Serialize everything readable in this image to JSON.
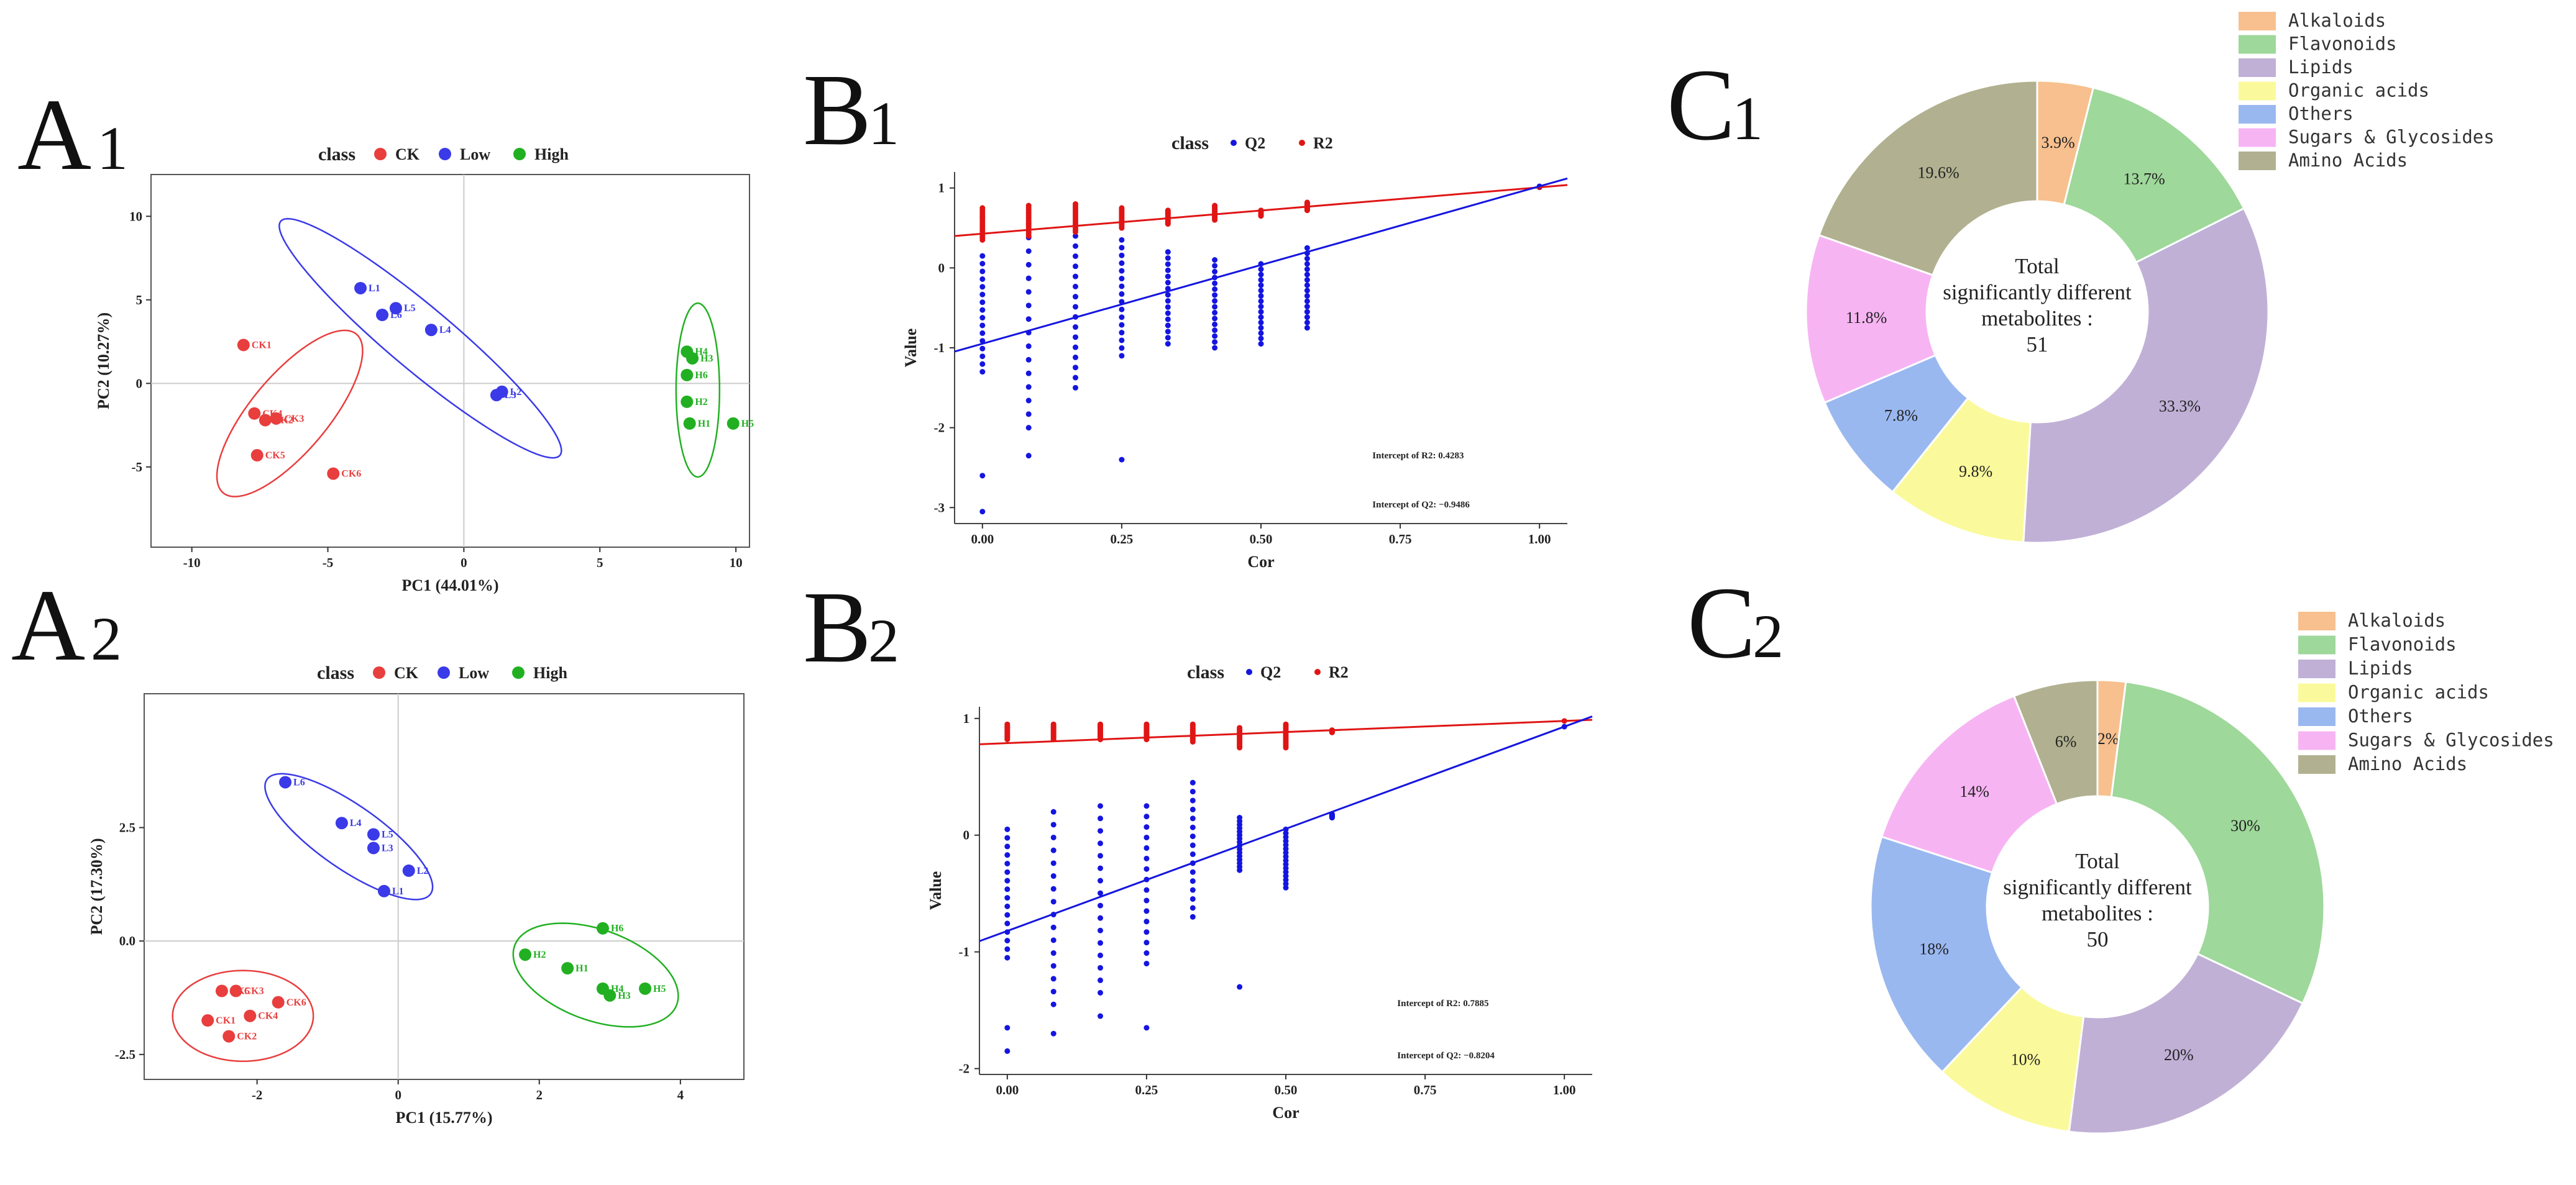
{
  "chart_data": [
    {
      "id": "A1",
      "type": "scatter",
      "panel_label": "A",
      "panel_index": "1",
      "xlabel": "PC1 (44.01%)",
      "ylabel": "PC2 (10.27%)",
      "xlim": [
        -11.5,
        10.5
      ],
      "ylim": [
        -9.8,
        12.5
      ],
      "xticks": [
        -10,
        -5,
        0,
        5,
        10
      ],
      "yticks": [
        -5,
        0,
        5,
        10
      ],
      "legend_title": "class",
      "series": [
        {
          "name": "CK",
          "color": "#e83e3e",
          "points": [
            {
              "label": "CK1",
              "x": -8.1,
              "y": 2.3
            },
            {
              "label": "CK4",
              "x": -7.7,
              "y": -1.8
            },
            {
              "label": "CK2",
              "x": -7.3,
              "y": -2.2
            },
            {
              "label": "CK3",
              "x": -6.9,
              "y": -2.1
            },
            {
              "label": "CK5",
              "x": -7.6,
              "y": -4.3
            },
            {
              "label": "CK6",
              "x": -4.8,
              "y": -5.4
            }
          ],
          "ellipse": {
            "cx": -6.4,
            "cy": -1.8,
            "rx": 2.3,
            "ry": 6.2,
            "angle": -40
          }
        },
        {
          "name": "Low",
          "color": "#3a3ae8",
          "points": [
            {
              "label": "L1",
              "x": -3.8,
              "y": 5.7
            },
            {
              "label": "L6",
              "x": -3.0,
              "y": 4.1
            },
            {
              "label": "L5",
              "x": -2.5,
              "y": 4.5
            },
            {
              "label": "L4",
              "x": -1.2,
              "y": 3.2
            },
            {
              "label": "L3",
              "x": 1.2,
              "y": -0.7
            },
            {
              "label": "L2",
              "x": 1.4,
              "y": -0.5
            }
          ],
          "ellipse": {
            "cx": -1.6,
            "cy": 2.7,
            "rx": 10.9,
            "ry": 1.9,
            "angle": -40
          }
        },
        {
          "name": "High",
          "color": "#22b022",
          "points": [
            {
              "label": "H4",
              "x": 8.2,
              "y": 1.9
            },
            {
              "label": "H3",
              "x": 8.4,
              "y": 1.5
            },
            {
              "label": "H6",
              "x": 8.2,
              "y": 0.5
            },
            {
              "label": "H2",
              "x": 8.2,
              "y": -1.1
            },
            {
              "label": "H1",
              "x": 8.3,
              "y": -2.4
            },
            {
              "label": "H5",
              "x": 9.9,
              "y": -2.4
            }
          ],
          "ellipse": {
            "cx": 8.6,
            "cy": -0.4,
            "rx": 1.3,
            "ry": 5.2,
            "angle": 0
          }
        }
      ]
    },
    {
      "id": "A2",
      "type": "scatter",
      "panel_label": "A",
      "panel_index": "2",
      "xlabel": "PC1 (15.77%)",
      "ylabel": "PC2 (17.30%)",
      "xlim": [
        -3.6,
        4.9
      ],
      "ylim": [
        -3.05,
        5.45
      ],
      "xticks": [
        -2,
        0,
        2,
        4
      ],
      "yticks": [
        -2.5,
        0.0,
        2.5
      ],
      "ytick_labels": [
        "-2.5",
        "0.0",
        "2.5"
      ],
      "legend_title": "class",
      "series": [
        {
          "name": "CK",
          "color": "#e83e3e",
          "points": [
            {
              "label": "CK5",
              "x": -2.5,
              "y": -1.1
            },
            {
              "label": "CK3",
              "x": -2.3,
              "y": -1.1
            },
            {
              "label": "CK6",
              "x": -1.7,
              "y": -1.35
            },
            {
              "label": "CK1",
              "x": -2.7,
              "y": -1.75
            },
            {
              "label": "CK4",
              "x": -2.1,
              "y": -1.65
            },
            {
              "label": "CK2",
              "x": -2.4,
              "y": -2.1
            }
          ],
          "ellipse": {
            "cx": -2.2,
            "cy": -1.65,
            "rx": 1.55,
            "ry": 1.0,
            "angle": 0
          }
        },
        {
          "name": "Low",
          "color": "#3a3ae8",
          "points": [
            {
              "label": "L6",
              "x": -1.6,
              "y": 3.5
            },
            {
              "label": "L4",
              "x": -0.8,
              "y": 2.6
            },
            {
              "label": "L5",
              "x": -0.35,
              "y": 2.35
            },
            {
              "label": "L3",
              "x": -0.35,
              "y": 2.05
            },
            {
              "label": "L2",
              "x": 0.15,
              "y": 1.55
            },
            {
              "label": "L1",
              "x": -0.2,
              "y": 1.1
            }
          ],
          "ellipse": {
            "cx": -0.7,
            "cy": 2.3,
            "rx": 2.2,
            "ry": 0.7,
            "angle": -35
          }
        },
        {
          "name": "High",
          "color": "#22b022",
          "points": [
            {
              "label": "H6",
              "x": 2.9,
              "y": 0.28
            },
            {
              "label": "H2",
              "x": 1.8,
              "y": -0.3
            },
            {
              "label": "H1",
              "x": 2.4,
              "y": -0.6
            },
            {
              "label": "H4",
              "x": 2.9,
              "y": -1.05
            },
            {
              "label": "H5",
              "x": 3.5,
              "y": -1.05
            },
            {
              "label": "H3",
              "x": 3.0,
              "y": -1.2
            }
          ],
          "ellipse": {
            "cx": 2.8,
            "cy": -0.75,
            "rx": 1.9,
            "ry": 1.0,
            "angle": -20
          }
        }
      ]
    },
    {
      "id": "B1",
      "type": "scatter",
      "panel_label": "B",
      "panel_index": "1",
      "xlabel": "Cor",
      "ylabel": "Value",
      "xlim": [
        -0.05,
        1.05
      ],
      "ylim": [
        -3.2,
        1.2
      ],
      "xticks": [
        0.0,
        0.25,
        0.5,
        0.75,
        1.0
      ],
      "xtick_labels": [
        "0.00",
        "0.25",
        "0.50",
        "0.75",
        "1.00"
      ],
      "yticks": [
        -3,
        -2,
        -1,
        0,
        1
      ],
      "legend_title": "class",
      "legend": [
        {
          "name": "Q2",
          "color": "#1515e0"
        },
        {
          "name": "R2",
          "color": "#e01515"
        }
      ],
      "r2_points": {
        "color": "#e01515",
        "columns": [
          {
            "x": 0.0,
            "min": 0.35,
            "max": 0.75
          },
          {
            "x": 0.083,
            "min": 0.4,
            "max": 0.78
          },
          {
            "x": 0.167,
            "min": 0.45,
            "max": 0.8
          },
          {
            "x": 0.25,
            "min": 0.5,
            "max": 0.75
          },
          {
            "x": 0.333,
            "min": 0.55,
            "max": 0.72
          },
          {
            "x": 0.417,
            "min": 0.6,
            "max": 0.78
          },
          {
            "x": 0.5,
            "min": 0.65,
            "max": 0.72
          },
          {
            "x": 0.583,
            "min": 0.72,
            "max": 0.82
          }
        ]
      },
      "q2_points": {
        "color": "#1515e0",
        "columns": [
          {
            "x": 0.0,
            "min": -1.3,
            "max": 0.15,
            "outliers": [
              -2.6,
              -3.05
            ]
          },
          {
            "x": 0.083,
            "min": -2.0,
            "max": 0.55,
            "outliers": [
              -2.35
            ]
          },
          {
            "x": 0.167,
            "min": -1.5,
            "max": 0.4,
            "outliers": []
          },
          {
            "x": 0.25,
            "min": -1.1,
            "max": 0.35,
            "outliers": [
              -2.4
            ]
          },
          {
            "x": 0.333,
            "min": -0.95,
            "max": 0.2,
            "outliers": []
          },
          {
            "x": 0.417,
            "min": -1.0,
            "max": 0.1,
            "outliers": []
          },
          {
            "x": 0.5,
            "min": -0.95,
            "max": 0.05,
            "outliers": []
          },
          {
            "x": 0.583,
            "min": -0.75,
            "max": 0.25,
            "outliers": []
          }
        ]
      },
      "r2_line": {
        "intercept": 0.4283,
        "slope": 0.58
      },
      "q2_line": {
        "intercept": -0.9486,
        "slope": 1.97
      },
      "annotations": [
        "Intercept of R2: 0.4283",
        "Intercept of Q2: −0.9486"
      ]
    },
    {
      "id": "B2",
      "type": "scatter",
      "panel_label": "B",
      "panel_index": "2",
      "xlabel": "Cor",
      "ylabel": "Value",
      "xlim": [
        -0.05,
        1.05
      ],
      "ylim": [
        -2.05,
        1.1
      ],
      "xticks": [
        0.0,
        0.25,
        0.5,
        0.75,
        1.0
      ],
      "xtick_labels": [
        "0.00",
        "0.25",
        "0.50",
        "0.75",
        "1.00"
      ],
      "yticks": [
        -2,
        -1,
        0,
        1
      ],
      "legend_title": "class",
      "legend": [
        {
          "name": "Q2",
          "color": "#1515e0"
        },
        {
          "name": "R2",
          "color": "#e01515"
        }
      ],
      "r2_points": {
        "color": "#e01515",
        "columns": [
          {
            "x": 0.0,
            "min": 0.82,
            "max": 0.95
          },
          {
            "x": 0.083,
            "min": 0.82,
            "max": 0.95
          },
          {
            "x": 0.167,
            "min": 0.82,
            "max": 0.95
          },
          {
            "x": 0.25,
            "min": 0.82,
            "max": 0.95
          },
          {
            "x": 0.333,
            "min": 0.8,
            "max": 0.95
          },
          {
            "x": 0.417,
            "min": 0.75,
            "max": 0.92
          },
          {
            "x": 0.5,
            "min": 0.75,
            "max": 0.95
          },
          {
            "x": 0.583,
            "min": 0.88,
            "max": 0.9
          }
        ]
      },
      "q2_points": {
        "color": "#1515e0",
        "columns": [
          {
            "x": 0.0,
            "min": -1.05,
            "max": 0.05,
            "outliers": [
              -1.65,
              -1.85
            ]
          },
          {
            "x": 0.083,
            "min": -1.45,
            "max": 0.2,
            "outliers": [
              -1.7
            ]
          },
          {
            "x": 0.167,
            "min": -1.35,
            "max": 0.25,
            "outliers": [
              -1.55
            ]
          },
          {
            "x": 0.25,
            "min": -1.1,
            "max": 0.25,
            "outliers": [
              -1.65
            ]
          },
          {
            "x": 0.333,
            "min": -0.7,
            "max": 0.45,
            "outliers": []
          },
          {
            "x": 0.417,
            "min": -0.3,
            "max": 0.15,
            "outliers": [
              -1.3
            ]
          },
          {
            "x": 0.5,
            "min": -0.45,
            "max": 0.05,
            "outliers": []
          },
          {
            "x": 0.583,
            "min": 0.15,
            "max": 0.18,
            "outliers": []
          }
        ]
      },
      "r2_line": {
        "intercept": 0.7885,
        "slope": 0.19
      },
      "q2_line": {
        "intercept": -0.8204,
        "slope": 1.75
      },
      "annotations": [
        "Intercept of R2: 0.7885",
        "Intercept of Q2: −0.8204"
      ]
    },
    {
      "id": "C1",
      "type": "pie",
      "panel_label": "C",
      "panel_index": "1",
      "center_text": [
        "Total",
        "significantly different",
        "metabolites :",
        "51"
      ],
      "categories": [
        "Alkaloids",
        "Flavonoids",
        "Lipids",
        "Organic acids",
        "Others",
        "Sugars & Glycosides",
        "Amino Acids"
      ],
      "colors": [
        "#f7c08e",
        "#9ed89a",
        "#c0b0d6",
        "#fafa9c",
        "#9ab8f0",
        "#f7b4f3",
        "#b1b191"
      ],
      "values": [
        3.9,
        13.7,
        33.3,
        9.8,
        7.8,
        11.8,
        19.6
      ],
      "labels": [
        "3.9%",
        "13.7%",
        "33.3%",
        "9.8%",
        "7.8%",
        "11.8%",
        "19.6%"
      ]
    },
    {
      "id": "C2",
      "type": "pie",
      "panel_label": "C",
      "panel_index": "2",
      "center_text": [
        "Total",
        "significantly different",
        "metabolites :",
        "50"
      ],
      "categories": [
        "Alkaloids",
        "Flavonoids",
        "Lipids",
        "Organic acids",
        "Others",
        "Sugars & Glycosides",
        "Amino Acids"
      ],
      "colors": [
        "#f7c08e",
        "#9ed89a",
        "#c0b0d6",
        "#fafa9c",
        "#9ab8f0",
        "#f7b4f3",
        "#b1b191"
      ],
      "values": [
        2,
        30,
        20,
        10,
        18,
        14,
        6
      ],
      "labels": [
        "2%",
        "30%",
        "20%",
        "10%",
        "18%",
        "14%",
        "6%"
      ]
    }
  ]
}
